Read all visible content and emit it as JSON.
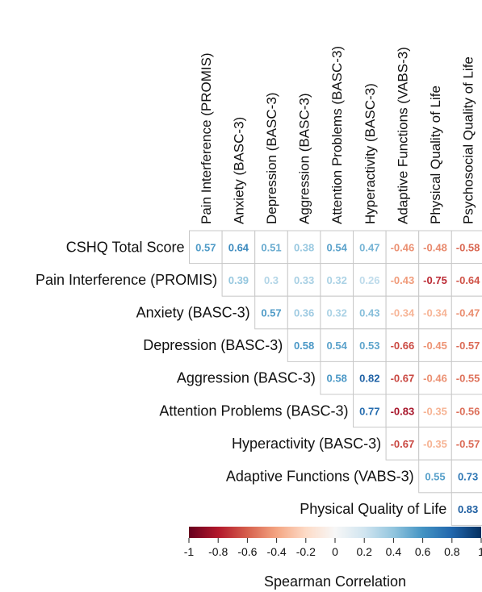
{
  "chart_data": {
    "type": "heatmap",
    "subtype": "upper-triangle correlation matrix",
    "columns": [
      "Pain Interference (PROMIS)",
      "Anxiety (BASC-3)",
      "Depression (BASC-3)",
      "Aggression (BASC-3)",
      "Attention Problems (BASC-3)",
      "Hyperactivity (BASC-3)",
      "Adaptive Functions (VABS-3)",
      "Physical Quality of Life",
      "Psychosocial Quality of Life"
    ],
    "rows": [
      {
        "label": "CSHQ Total Score",
        "start_col": 0,
        "values": [
          "0.57",
          "0.64",
          "0.51",
          "0.38",
          "0.54",
          "0.47",
          "-0.46",
          "-0.48",
          "-0.58"
        ]
      },
      {
        "label": "Pain Interference (PROMIS)",
        "start_col": 1,
        "values": [
          "0.39",
          "0.3",
          "0.33",
          "0.32",
          "0.26",
          "-0.43",
          "-0.75",
          "-0.64"
        ]
      },
      {
        "label": "Anxiety (BASC-3)",
        "start_col": 2,
        "values": [
          "0.57",
          "0.36",
          "0.32",
          "0.43",
          "-0.34",
          "-0.34",
          "-0.47"
        ]
      },
      {
        "label": "Depression (BASC-3)",
        "start_col": 3,
        "values": [
          "0.58",
          "0.54",
          "0.53",
          "-0.66",
          "-0.45",
          "-0.57"
        ]
      },
      {
        "label": "Aggression (BASC-3)",
        "start_col": 4,
        "values": [
          "0.58",
          "0.82",
          "-0.67",
          "-0.46",
          "-0.55"
        ]
      },
      {
        "label": "Attention Problems (BASC-3)",
        "start_col": 5,
        "values": [
          "0.77",
          "-0.83",
          "-0.35",
          "-0.56"
        ]
      },
      {
        "label": "Hyperactivity (BASC-3)",
        "start_col": 6,
        "values": [
          "-0.67",
          "-0.35",
          "-0.57"
        ]
      },
      {
        "label": "Adaptive Functions (VABS-3)",
        "start_col": 7,
        "values": [
          "0.55",
          "0.73"
        ]
      },
      {
        "label": "Physical Quality of Life",
        "start_col": 8,
        "values": [
          "0.83"
        ]
      }
    ],
    "legend": {
      "title": "Spearman Correlation",
      "range": [
        -1,
        1
      ],
      "ticks": [
        "-1",
        "-0.8",
        "-0.6",
        "-0.4",
        "-0.2",
        "0",
        "0.2",
        "0.4",
        "0.6",
        "0.8",
        "1"
      ],
      "colors": {
        "negative": "#67001f",
        "neutral": "#f7f7f7",
        "positive": "#053061"
      }
    }
  }
}
